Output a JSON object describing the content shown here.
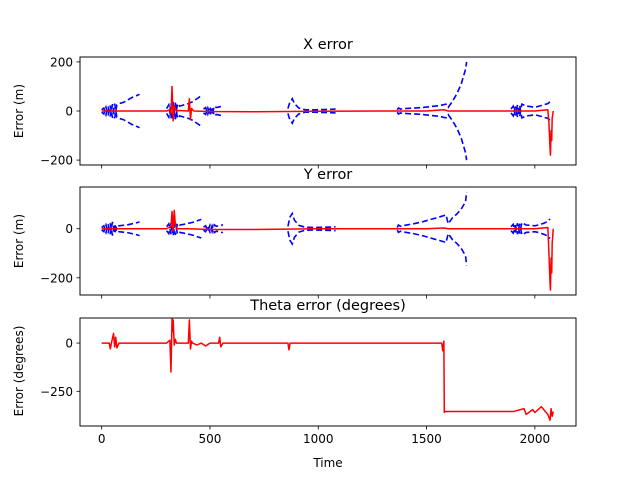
{
  "chart_data": [
    {
      "type": "line",
      "title": "X error",
      "xlabel": "",
      "ylabel": "Error (m)",
      "xlim": [
        -100,
        2190
      ],
      "ylim": [
        -220,
        220
      ],
      "xticks": [
        0,
        500,
        1000,
        1500,
        2000
      ],
      "xtick_labels": [
        "",
        "",
        "",
        "",
        ""
      ],
      "yticks": [
        -200,
        0,
        200
      ],
      "ytick_labels": [
        "−200",
        "0",
        "200"
      ],
      "grid": false,
      "series": [
        {
          "color": "#0000ff",
          "style": "dashed",
          "x": [
            0,
            10,
            20,
            30,
            40,
            50,
            60,
            70,
            80,
            100,
            120,
            140,
            160,
            175
          ],
          "y": [
            5,
            12,
            -15,
            18,
            -22,
            28,
            -30,
            25,
            30,
            35,
            45,
            55,
            62,
            68
          ]
        },
        {
          "color": "#0000ff",
          "style": "dashed",
          "x": [
            0,
            10,
            20,
            30,
            40,
            50,
            60,
            70,
            80,
            100,
            120,
            140,
            160,
            175
          ],
          "y": [
            -5,
            -12,
            15,
            -18,
            22,
            -28,
            30,
            -25,
            -30,
            -35,
            -45,
            -55,
            -62,
            -68
          ]
        },
        {
          "color": "#0000ff",
          "style": "dashed",
          "x": [
            300,
            310,
            320,
            330,
            340,
            350,
            360,
            380,
            400,
            420,
            440,
            460
          ],
          "y": [
            10,
            25,
            -30,
            40,
            -35,
            30,
            20,
            25,
            30,
            38,
            50,
            62
          ]
        },
        {
          "color": "#0000ff",
          "style": "dashed",
          "x": [
            300,
            310,
            320,
            330,
            340,
            350,
            360,
            380,
            400,
            420,
            440,
            460
          ],
          "y": [
            -10,
            -25,
            30,
            -40,
            35,
            -30,
            -20,
            -25,
            -30,
            -38,
            -50,
            -62
          ]
        },
        {
          "color": "#0000ff",
          "style": "dashed",
          "x": [
            470,
            480,
            490,
            500,
            510,
            520,
            530,
            540,
            550,
            560
          ],
          "y": [
            8,
            14,
            -12,
            18,
            -16,
            20,
            14,
            16,
            18,
            20
          ]
        },
        {
          "color": "#0000ff",
          "style": "dashed",
          "x": [
            470,
            480,
            490,
            500,
            510,
            520,
            530,
            540,
            550,
            560
          ],
          "y": [
            -8,
            -14,
            12,
            -18,
            16,
            -20,
            -14,
            -16,
            -18,
            -20
          ]
        },
        {
          "color": "#0000ff",
          "style": "dashed",
          "x": [
            860,
            865,
            870,
            875,
            880,
            890,
            910,
            940,
            980,
            1020,
            1060,
            1080
          ],
          "y": [
            10,
            25,
            38,
            42,
            50,
            30,
            12,
            5,
            5,
            6,
            7,
            8
          ]
        },
        {
          "color": "#0000ff",
          "style": "dashed",
          "x": [
            860,
            865,
            870,
            875,
            880,
            890,
            910,
            940,
            980,
            1020,
            1060,
            1080
          ],
          "y": [
            -10,
            -25,
            -38,
            -42,
            -50,
            -30,
            -12,
            -5,
            -5,
            -6,
            -7,
            -8
          ]
        },
        {
          "color": "#0000ff",
          "style": "dashed",
          "x": [
            1365,
            1370,
            1380,
            1400,
            1440,
            1480,
            1520,
            1560,
            1590,
            1600,
            1620,
            1640,
            1660,
            1680,
            1685
          ],
          "y": [
            5,
            12,
            8,
            10,
            12,
            14,
            18,
            22,
            28,
            15,
            40,
            70,
            110,
            170,
            200
          ]
        },
        {
          "color": "#0000ff",
          "style": "dashed",
          "x": [
            1365,
            1370,
            1380,
            1400,
            1440,
            1480,
            1520,
            1560,
            1590,
            1600,
            1620,
            1640,
            1660,
            1680,
            1685
          ],
          "y": [
            -5,
            -12,
            -8,
            -10,
            -12,
            -14,
            -18,
            -22,
            -28,
            -15,
            -40,
            -70,
            -110,
            -170,
            -200
          ]
        },
        {
          "color": "#0000ff",
          "style": "dashed",
          "x": [
            1890,
            1900,
            1910,
            1920,
            1930,
            1940,
            1960,
            1980,
            2000,
            2020,
            2040,
            2060,
            2070
          ],
          "y": [
            8,
            20,
            -18,
            25,
            -22,
            28,
            20,
            18,
            15,
            20,
            25,
            30,
            38
          ]
        },
        {
          "color": "#0000ff",
          "style": "dashed",
          "x": [
            1890,
            1900,
            1910,
            1920,
            1930,
            1940,
            1960,
            1980,
            2000,
            2020,
            2040,
            2060,
            2070
          ],
          "y": [
            -8,
            -20,
            18,
            -25,
            22,
            -28,
            -20,
            -18,
            -15,
            -20,
            -25,
            -30,
            -38
          ]
        },
        {
          "color": "#ff0000",
          "style": "solid",
          "x": [
            0,
            100,
            200,
            300,
            315,
            320,
            325,
            330,
            335,
            345,
            360,
            400,
            405,
            410,
            415,
            425,
            500,
            700,
            1000,
            1300,
            1500,
            1580,
            1600,
            1700,
            1900,
            2000,
            2060,
            2065,
            2070,
            2072,
            2075,
            2078,
            2080,
            2085
          ],
          "y": [
            0,
            0,
            0,
            0,
            5,
            -10,
            100,
            -40,
            20,
            0,
            2,
            0,
            50,
            -35,
            10,
            0,
            -2,
            -3,
            -1,
            0,
            0,
            5,
            0,
            0,
            0,
            0,
            5,
            -50,
            -150,
            -180,
            -80,
            -120,
            -30,
            0
          ]
        }
      ]
    },
    {
      "type": "line",
      "title": "Y error",
      "xlabel": "",
      "ylabel": "Error (m)",
      "xlim": [
        -100,
        2190
      ],
      "ylim": [
        -270,
        170
      ],
      "xticks": [
        0,
        500,
        1000,
        1500,
        2000
      ],
      "xtick_labels": [
        "",
        "",
        "",
        "",
        ""
      ],
      "yticks": [
        -200,
        0
      ],
      "ytick_labels": [
        "−200",
        "0"
      ],
      "grid": false,
      "series": [
        {
          "color": "#0000ff",
          "style": "dashed",
          "x": [
            0,
            10,
            20,
            30,
            40,
            50,
            60,
            70,
            80,
            100,
            120,
            140,
            160,
            175
          ],
          "y": [
            5,
            12,
            -15,
            18,
            -22,
            28,
            -20,
            15,
            12,
            14,
            16,
            20,
            24,
            28
          ]
        },
        {
          "color": "#0000ff",
          "style": "dashed",
          "x": [
            0,
            10,
            20,
            30,
            40,
            50,
            60,
            70,
            80,
            100,
            120,
            140,
            160,
            175
          ],
          "y": [
            -5,
            -12,
            15,
            -18,
            22,
            -28,
            20,
            -15,
            -12,
            -14,
            -16,
            -20,
            -24,
            -28
          ]
        },
        {
          "color": "#0000ff",
          "style": "dashed",
          "x": [
            300,
            310,
            320,
            330,
            340,
            350,
            360,
            380,
            400,
            420,
            440,
            460
          ],
          "y": [
            8,
            20,
            -22,
            28,
            -25,
            22,
            15,
            18,
            22,
            26,
            32,
            38
          ]
        },
        {
          "color": "#0000ff",
          "style": "dashed",
          "x": [
            300,
            310,
            320,
            330,
            340,
            350,
            360,
            380,
            400,
            420,
            440,
            460
          ],
          "y": [
            -8,
            -20,
            22,
            -28,
            25,
            -22,
            -15,
            -18,
            -22,
            -26,
            -32,
            -38
          ]
        },
        {
          "color": "#0000ff",
          "style": "dashed",
          "x": [
            470,
            480,
            490,
            500,
            510,
            520,
            530,
            540,
            550,
            560
          ],
          "y": [
            6,
            12,
            -10,
            14,
            -12,
            16,
            10,
            12,
            14,
            16
          ]
        },
        {
          "color": "#0000ff",
          "style": "dashed",
          "x": [
            470,
            480,
            490,
            500,
            510,
            520,
            530,
            540,
            550,
            560
          ],
          "y": [
            -6,
            -12,
            10,
            -14,
            12,
            -16,
            -10,
            -12,
            -14,
            -16
          ]
        },
        {
          "color": "#0000ff",
          "style": "dashed",
          "x": [
            860,
            865,
            870,
            875,
            880,
            890,
            910,
            940,
            980,
            1020,
            1060,
            1080
          ],
          "y": [
            10,
            30,
            48,
            55,
            62,
            35,
            14,
            6,
            5,
            6,
            7,
            8
          ]
        },
        {
          "color": "#0000ff",
          "style": "dashed",
          "x": [
            860,
            865,
            870,
            875,
            880,
            890,
            910,
            940,
            980,
            1020,
            1060,
            1080
          ],
          "y": [
            -10,
            -30,
            -48,
            -55,
            -62,
            -35,
            -14,
            -6,
            -5,
            -6,
            -7,
            -8
          ]
        },
        {
          "color": "#0000ff",
          "style": "dashed",
          "x": [
            1365,
            1370,
            1380,
            1400,
            1440,
            1480,
            1520,
            1560,
            1590,
            1600,
            1620,
            1640,
            1660,
            1680,
            1685
          ],
          "y": [
            5,
            15,
            10,
            14,
            20,
            28,
            38,
            48,
            56,
            20,
            45,
            60,
            80,
            110,
            150
          ]
        },
        {
          "color": "#0000ff",
          "style": "dashed",
          "x": [
            1365,
            1370,
            1380,
            1400,
            1440,
            1480,
            1520,
            1560,
            1590,
            1600,
            1620,
            1640,
            1660,
            1680,
            1685
          ],
          "y": [
            -5,
            -15,
            -10,
            -14,
            -20,
            -28,
            -38,
            -48,
            -56,
            -20,
            -45,
            -60,
            -80,
            -110,
            -150
          ]
        },
        {
          "color": "#0000ff",
          "style": "dashed",
          "x": [
            1890,
            1900,
            1910,
            1920,
            1930,
            1940,
            1960,
            1980,
            2000,
            2020,
            2040,
            2060,
            2070
          ],
          "y": [
            8,
            18,
            -15,
            22,
            -20,
            25,
            15,
            14,
            12,
            16,
            22,
            30,
            40
          ]
        },
        {
          "color": "#0000ff",
          "style": "dashed",
          "x": [
            1890,
            1900,
            1910,
            1920,
            1930,
            1940,
            1960,
            1980,
            2000,
            2020,
            2040,
            2060,
            2070
          ],
          "y": [
            -8,
            -18,
            15,
            -22,
            20,
            -25,
            -15,
            -14,
            -12,
            -16,
            -22,
            -30,
            -40
          ]
        },
        {
          "color": "#ff0000",
          "style": "solid",
          "x": [
            0,
            100,
            200,
            300,
            320,
            325,
            330,
            335,
            340,
            345,
            360,
            400,
            500,
            700,
            1000,
            1300,
            1500,
            1580,
            1600,
            1700,
            1900,
            2000,
            2060,
            2065,
            2070,
            2072,
            2075,
            2078,
            2080,
            2085
          ],
          "y": [
            0,
            0,
            0,
            0,
            10,
            70,
            -10,
            75,
            20,
            0,
            0,
            0,
            -3,
            -3,
            0,
            0,
            0,
            3,
            0,
            0,
            0,
            0,
            5,
            -100,
            -220,
            -250,
            -120,
            -180,
            -60,
            0
          ]
        }
      ]
    },
    {
      "type": "line",
      "title": "Theta error (degrees)",
      "xlabel": "Time",
      "ylabel": "Error (degrees)",
      "xlim": [
        -100,
        2190
      ],
      "ylim": [
        -430,
        130
      ],
      "xticks": [
        0,
        500,
        1000,
        1500,
        2000
      ],
      "xtick_labels": [
        "0",
        "500",
        "1000",
        "1500",
        "2000"
      ],
      "yticks": [
        -250,
        0
      ],
      "ytick_labels": [
        "−250",
        "0"
      ],
      "grid": false,
      "series": [
        {
          "color": "#ff0000",
          "style": "solid",
          "x": [
            0,
            35,
            40,
            45,
            55,
            60,
            65,
            70,
            80,
            300,
            315,
            320,
            325,
            328,
            330,
            335,
            340,
            345,
            360,
            400,
            405,
            410,
            415,
            420,
            440,
            460,
            480,
            500,
            540,
            545,
            550,
            560,
            700,
            860,
            865,
            870,
            1000,
            1300,
            1500,
            1570,
            1575,
            1580,
            1582,
            1585,
            1700,
            1900,
            1950,
            1960,
            1990,
            2000,
            2030,
            2060,
            2070,
            2075,
            2080,
            2085
          ],
          "y": [
            0,
            0,
            -30,
            0,
            50,
            -20,
            30,
            -25,
            0,
            0,
            15,
            -150,
            130,
            60,
            120,
            -10,
            20,
            0,
            0,
            0,
            120,
            -30,
            10,
            0,
            -10,
            0,
            -15,
            0,
            0,
            30,
            -20,
            0,
            0,
            0,
            -35,
            0,
            0,
            0,
            0,
            0,
            -40,
            10,
            -360,
            -355,
            -355,
            -355,
            -340,
            -370,
            -345,
            -360,
            -330,
            -370,
            -400,
            -340,
            -380,
            -355
          ]
        }
      ]
    }
  ]
}
